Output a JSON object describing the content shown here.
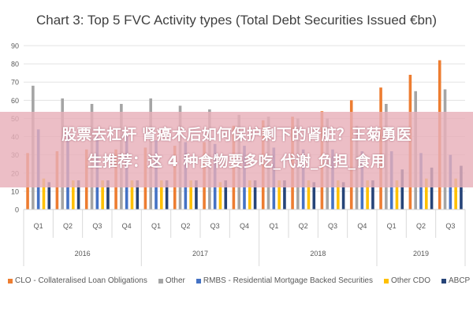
{
  "chart_data": {
    "type": "bar",
    "title": "Chart 3: Top 5 FVC Activity types (Total Debt Securities Issued €bn)",
    "xlabel": "",
    "ylabel": "",
    "ylim": [
      0,
      90
    ],
    "yticks": [
      0,
      10,
      20,
      30,
      40,
      50,
      60,
      70,
      80,
      90
    ],
    "grid": true,
    "legend_position": "bottom",
    "categories": [
      "Q1",
      "Q2",
      "Q3",
      "Q4",
      "Q1",
      "Q2",
      "Q3",
      "Q4",
      "Q1",
      "Q2",
      "Q3",
      "Q4",
      "Q1",
      "Q2",
      "Q3"
    ],
    "year_groups": [
      {
        "label": "2016",
        "count": 4
      },
      {
        "label": "2017",
        "count": 4
      },
      {
        "label": "2018",
        "count": 4
      },
      {
        "label": "2019",
        "count": 3
      }
    ],
    "series": [
      {
        "name": "CLO - Collateralised Loan Obligations",
        "color": "#ED7D31",
        "values": [
          31,
          32,
          33,
          33,
          34,
          35,
          37,
          46,
          49,
          51,
          54,
          60,
          67,
          74,
          82
        ]
      },
      {
        "name": "Other",
        "color": "#A5A5A5",
        "values": [
          68,
          61,
          58,
          58,
          61,
          57,
          55,
          52,
          51,
          50,
          50,
          46,
          58,
          65,
          66
        ]
      },
      {
        "name": "RMBS - Residential Mortgage Backed Securities",
        "color": "#4472C4",
        "values": [
          44,
          43,
          40,
          42,
          38,
          37,
          36,
          35,
          34,
          33,
          33,
          32,
          32,
          31,
          30
        ]
      },
      {
        "name": "Other CDO",
        "color": "#FFC000",
        "values": [
          17,
          16,
          16,
          16,
          16,
          16,
          15,
          16,
          16,
          16,
          16,
          16,
          16,
          17,
          17
        ]
      },
      {
        "name": "ABCP",
        "color": "#264478",
        "values": [
          15,
          16,
          16,
          16,
          16,
          16,
          16,
          16,
          16,
          15,
          15,
          16,
          22,
          23,
          24
        ]
      }
    ]
  },
  "overlay": {
    "line1": "股票去杠杆 肾癌术后如何保护剩下的肾脏？王菊勇医",
    "line2": "生推荐：这 4 种食物要多吃_代谢_负担_食用"
  }
}
